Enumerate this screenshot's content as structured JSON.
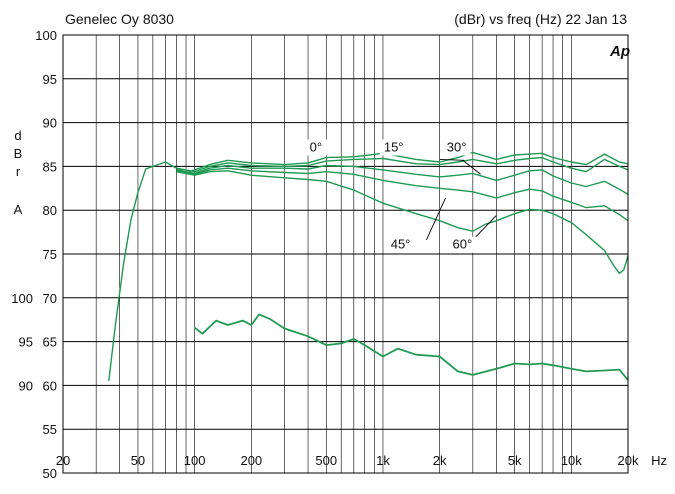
{
  "chart_data": {
    "type": "line",
    "title_left": "Genelec Oy 8030",
    "title_right": "(dBr) vs freq (Hz) 22 Jan 13",
    "logo": "Ap",
    "xlabel": "Hz",
    "ylabel": "dBrA",
    "x_scale": "log",
    "xlim": [
      20,
      20000
    ],
    "ylim": [
      50,
      100
    ],
    "grid": true,
    "line_color": "#1f9a52",
    "x_ticks": [
      {
        "v": 20,
        "label": "20"
      },
      {
        "v": 50,
        "label": "50"
      },
      {
        "v": 100,
        "label": "100"
      },
      {
        "v": 200,
        "label": "200"
      },
      {
        "v": 500,
        "label": "500"
      },
      {
        "v": 1000,
        "label": "1k"
      },
      {
        "v": 2000,
        "label": "2k"
      },
      {
        "v": 5000,
        "label": "5k"
      },
      {
        "v": 10000,
        "label": "10k"
      },
      {
        "v": 20000,
        "label": "20k"
      }
    ],
    "y_ticks": [
      {
        "v": 100,
        "label": "100"
      },
      {
        "v": 95,
        "label": "95"
      },
      {
        "v": 90,
        "label": "90"
      },
      {
        "v": 85,
        "label": "85"
      },
      {
        "v": 80,
        "label": "80"
      },
      {
        "v": 75,
        "label": "75"
      },
      {
        "v": 70,
        "label": "70"
      },
      {
        "v": 65,
        "label": "65"
      },
      {
        "v": 60,
        "label": "60"
      },
      {
        "v": 55,
        "label": "55"
      },
      {
        "v": 50,
        "label": "50"
      }
    ],
    "secondary_y_ticks": [
      {
        "v": 70,
        "label": "100"
      },
      {
        "v": 65,
        "label": "95"
      },
      {
        "v": 60,
        "label": "90"
      }
    ],
    "series": [
      {
        "name": "0°",
        "x": [
          35,
          38,
          42,
          46,
          50,
          55,
          60,
          70,
          80,
          90,
          100,
          120,
          150,
          200,
          300,
          400,
          500,
          700,
          1000,
          1500,
          2000,
          2500,
          3000,
          4000,
          5000,
          6000,
          7000,
          8000,
          10000,
          12000,
          15000,
          18000,
          20000
        ],
        "y": [
          60.5,
          67,
          74,
          79,
          82,
          84.7,
          85,
          85.5,
          84.8,
          84.3,
          84.6,
          85.2,
          85.7,
          85.4,
          85.2,
          85.4,
          86,
          86.1,
          86.5,
          85.8,
          85.5,
          86,
          86.6,
          85.8,
          86.3,
          86.4,
          86.5,
          86,
          85.5,
          85.2,
          86.4,
          85.5,
          85.3
        ]
      },
      {
        "name": "15°",
        "x": [
          80,
          100,
          120,
          150,
          200,
          300,
          400,
          500,
          700,
          1000,
          1500,
          2000,
          2500,
          3000,
          4000,
          5000,
          6000,
          7000,
          8000,
          10000,
          12000,
          15000,
          18000,
          20000
        ],
        "y": [
          84.8,
          84.4,
          85,
          85.4,
          85.1,
          85,
          85.1,
          85.6,
          85.8,
          85.9,
          85.3,
          85.2,
          85.5,
          85.8,
          85.3,
          85.7,
          85.9,
          86,
          85.5,
          84.8,
          84.4,
          85.8,
          85,
          84.6
        ]
      },
      {
        "name": "30°",
        "x": [
          80,
          100,
          120,
          150,
          200,
          300,
          400,
          500,
          700,
          1000,
          1500,
          2000,
          2500,
          3000,
          4000,
          5000,
          6000,
          7000,
          8000,
          10000,
          12000,
          15000,
          18000,
          20000
        ],
        "y": [
          84.6,
          84.2,
          84.8,
          85.1,
          84.8,
          84.8,
          84.7,
          85.1,
          85,
          84.6,
          84.1,
          83.8,
          84,
          84.2,
          83.4,
          84,
          84.5,
          84.6,
          83.9,
          83.1,
          82.7,
          83.3,
          82.4,
          81.8
        ]
      },
      {
        "name": "45°",
        "x": [
          80,
          100,
          120,
          150,
          200,
          300,
          400,
          500,
          700,
          1000,
          1500,
          2000,
          2500,
          3000,
          4000,
          5000,
          6000,
          7000,
          8000,
          10000,
          12000,
          15000,
          18000,
          20000
        ],
        "y": [
          84.5,
          84.1,
          84.6,
          84.8,
          84.5,
          84.3,
          84.2,
          84.4,
          84.1,
          83.4,
          82.8,
          82.5,
          82.3,
          82.1,
          81.4,
          82,
          82.4,
          82.2,
          81.6,
          80.9,
          80.3,
          80.5,
          79.5,
          78.8
        ]
      },
      {
        "name": "60°",
        "x": [
          80,
          100,
          120,
          150,
          200,
          300,
          400,
          500,
          700,
          1000,
          1500,
          2000,
          2500,
          3000,
          3500,
          4000,
          5000,
          6000,
          7000,
          8000,
          10000,
          12000,
          15000,
          17000,
          18000,
          19000,
          20000
        ],
        "y": [
          84.4,
          84,
          84.4,
          84.5,
          84,
          83.7,
          83.5,
          83.3,
          82.3,
          80.8,
          79.6,
          78.8,
          78,
          77.6,
          78.4,
          78.8,
          79.6,
          80.1,
          80,
          79.6,
          78.6,
          77.2,
          75.4,
          73.5,
          72.8,
          73.2,
          74.8
        ]
      },
      {
        "name": "",
        "x": [
          100,
          110,
          130,
          150,
          180,
          200,
          220,
          250,
          300,
          400,
          500,
          600,
          700,
          800,
          1000,
          1200,
          1500,
          2000,
          2500,
          3000,
          4000,
          5000,
          6000,
          7000,
          8000,
          10000,
          12000,
          15000,
          18000,
          20000
        ],
        "y": [
          66.6,
          65.9,
          67.4,
          66.9,
          67.4,
          66.9,
          68.1,
          67.6,
          66.5,
          65.6,
          64.6,
          64.8,
          65.3,
          64.6,
          63.3,
          64.2,
          63.5,
          63.3,
          61.6,
          61.2,
          61.9,
          62.5,
          62.4,
          62.5,
          62.3,
          61.9,
          61.6,
          61.7,
          61.8,
          60.6
        ]
      }
    ],
    "annotations": [
      {
        "text": "0°",
        "at": [
          440,
          86.7
        ]
      },
      {
        "text": "15°",
        "at": [
          1140,
          86.7
        ]
      },
      {
        "text": "30°",
        "at": [
          2460,
          86.7
        ]
      },
      {
        "text": "45°",
        "at": [
          1240,
          75.6
        ]
      },
      {
        "text": "60°",
        "at": [
          2640,
          75.6
        ]
      }
    ],
    "leaders": [
      {
        "from": [
          2700,
          85.7
        ],
        "to": [
          2000,
          85.8
        ]
      },
      {
        "from": [
          2650,
          85.7
        ],
        "to": [
          3300,
          84.1
        ]
      },
      {
        "from": [
          1700,
          76.6
        ],
        "to": [
          2150,
          81.4
        ]
      },
      {
        "from": [
          3000,
          76.6
        ],
        "to": [
          4000,
          79.4
        ]
      }
    ]
  }
}
